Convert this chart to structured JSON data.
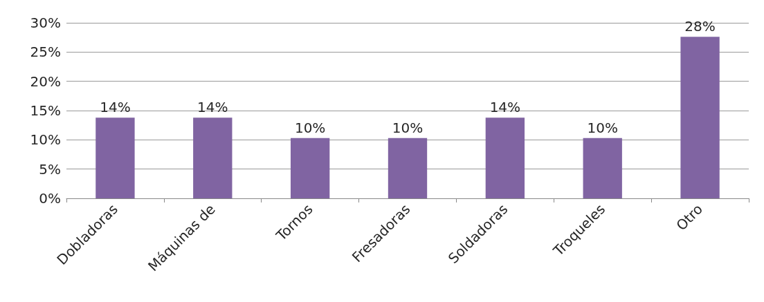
{
  "chart_data": {
    "type": "bar",
    "categories": [
      "Dobladoras",
      "Máquinas de",
      "Tornos",
      "Fresadoras",
      "Soldadoras",
      "Troqueles",
      "Otro"
    ],
    "values": [
      13.8,
      13.8,
      10.3,
      10.3,
      13.8,
      10.3,
      27.6
    ],
    "value_labels": [
      "14%",
      "14%",
      "10%",
      "10%",
      "14%",
      "10%",
      "28%"
    ],
    "color": "#8064a2",
    "ylim": [
      0,
      30
    ],
    "yticks": [
      {
        "value": 0,
        "label": "0%"
      },
      {
        "value": 5,
        "label": "5%"
      },
      {
        "value": 10,
        "label": "10%"
      },
      {
        "value": 15,
        "label": "15%"
      },
      {
        "value": 20,
        "label": "20%"
      },
      {
        "value": 25,
        "label": "25%"
      },
      {
        "value": 30,
        "label": "30%"
      }
    ],
    "grid": "y"
  }
}
